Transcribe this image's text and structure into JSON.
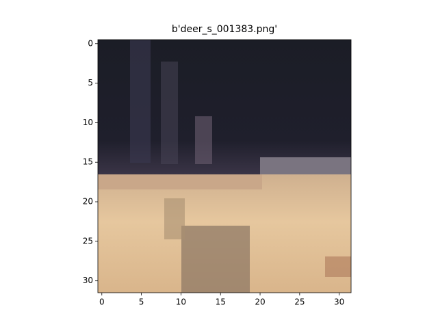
{
  "chart_data": {
    "type": "image",
    "title": "b'deer_s_001383.png'",
    "xlim": [
      -0.5,
      31.5
    ],
    "ylim": [
      31.5,
      -0.5
    ],
    "xticks": [
      0,
      5,
      10,
      15,
      20,
      25,
      30
    ],
    "yticks": [
      0,
      5,
      10,
      15,
      20,
      25,
      30
    ]
  }
}
